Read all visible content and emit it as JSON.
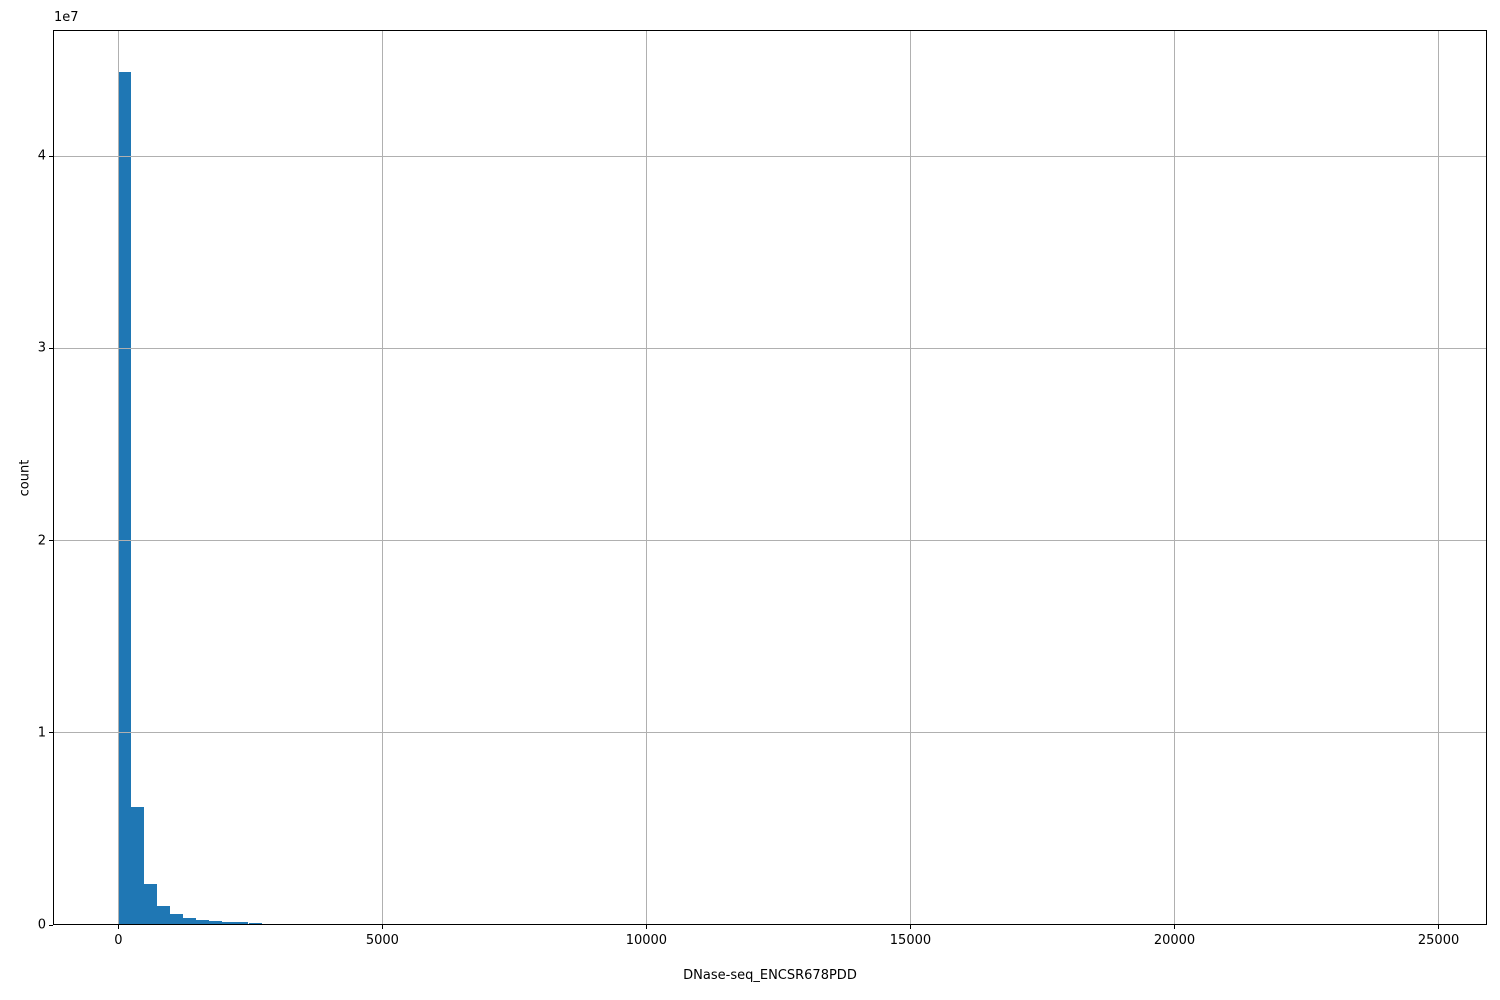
{
  "chart_data": {
    "type": "bar",
    "subtype": "histogram",
    "title": "",
    "xlabel": "DNase-seq_ENCSR678PDD",
    "ylabel": "count",
    "y_offset_text": "1e7",
    "bar_color": "#1f77b4",
    "grid": true,
    "grid_color": "#b0b0b0",
    "axis_color": "#000000",
    "legend": null,
    "xlim": [
      -1237,
      25917
    ],
    "ylim": [
      0,
      46570000
    ],
    "x_ticks": [
      {
        "value": 0,
        "label": "0"
      },
      {
        "value": 5000,
        "label": "5000"
      },
      {
        "value": 10000,
        "label": "10000"
      },
      {
        "value": 15000,
        "label": "15000"
      },
      {
        "value": 20000,
        "label": "20000"
      },
      {
        "value": 25000,
        "label": "25000"
      }
    ],
    "y_ticks": [
      {
        "value": 0,
        "label": "0"
      },
      {
        "value": 10000000,
        "label": "1"
      },
      {
        "value": 20000000,
        "label": "2"
      },
      {
        "value": 30000000,
        "label": "3"
      },
      {
        "value": 40000000,
        "label": "4"
      }
    ],
    "bins": {
      "start": 0,
      "width": 246.5
    },
    "counts": [
      44400000,
      6140000,
      2130000,
      970000,
      590000,
      380000,
      280000,
      210000,
      170000,
      140000,
      85000,
      62000,
      52000,
      47000,
      42000,
      36000
    ]
  }
}
